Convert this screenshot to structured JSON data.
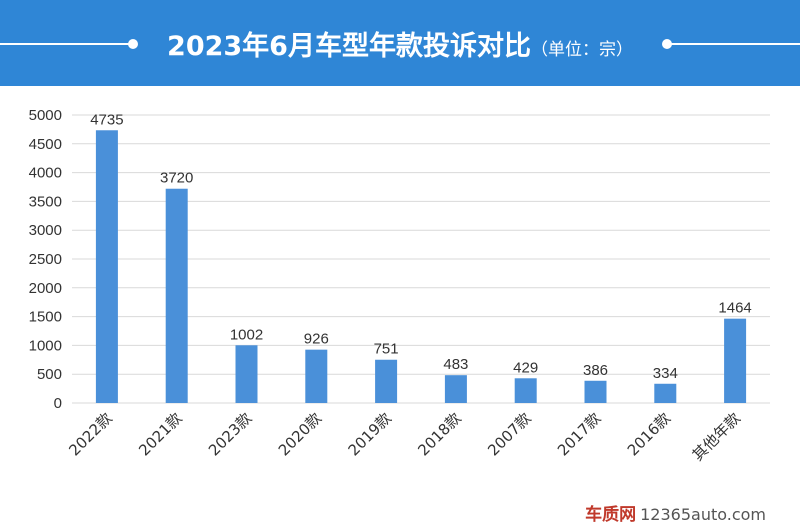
{
  "header": {
    "title": "2023年6月车型年款投诉对比",
    "unit": "（单位：宗）"
  },
  "colors": {
    "banner": "#2f86d6",
    "bar": "#4a90d9",
    "grid": "#d9d9d9"
  },
  "chart_data": {
    "type": "bar",
    "title": "2023年6月车型年款投诉对比",
    "subtitle": "（单位：宗）",
    "categories": [
      "2022款",
      "2021款",
      "2023款",
      "2020款",
      "2019款",
      "2018款",
      "2007款",
      "2017款",
      "2016款",
      "其他年款"
    ],
    "values": [
      4735,
      3720,
      1002,
      926,
      751,
      483,
      429,
      386,
      334,
      1464
    ],
    "ylim": [
      0,
      5000
    ],
    "yticks": [
      0,
      500,
      1000,
      1500,
      2000,
      2500,
      3000,
      3500,
      4000,
      4500,
      5000
    ],
    "grid": true,
    "legend": "none"
  },
  "watermark": {
    "brand": "车质网",
    "site": "12365auto.com"
  }
}
